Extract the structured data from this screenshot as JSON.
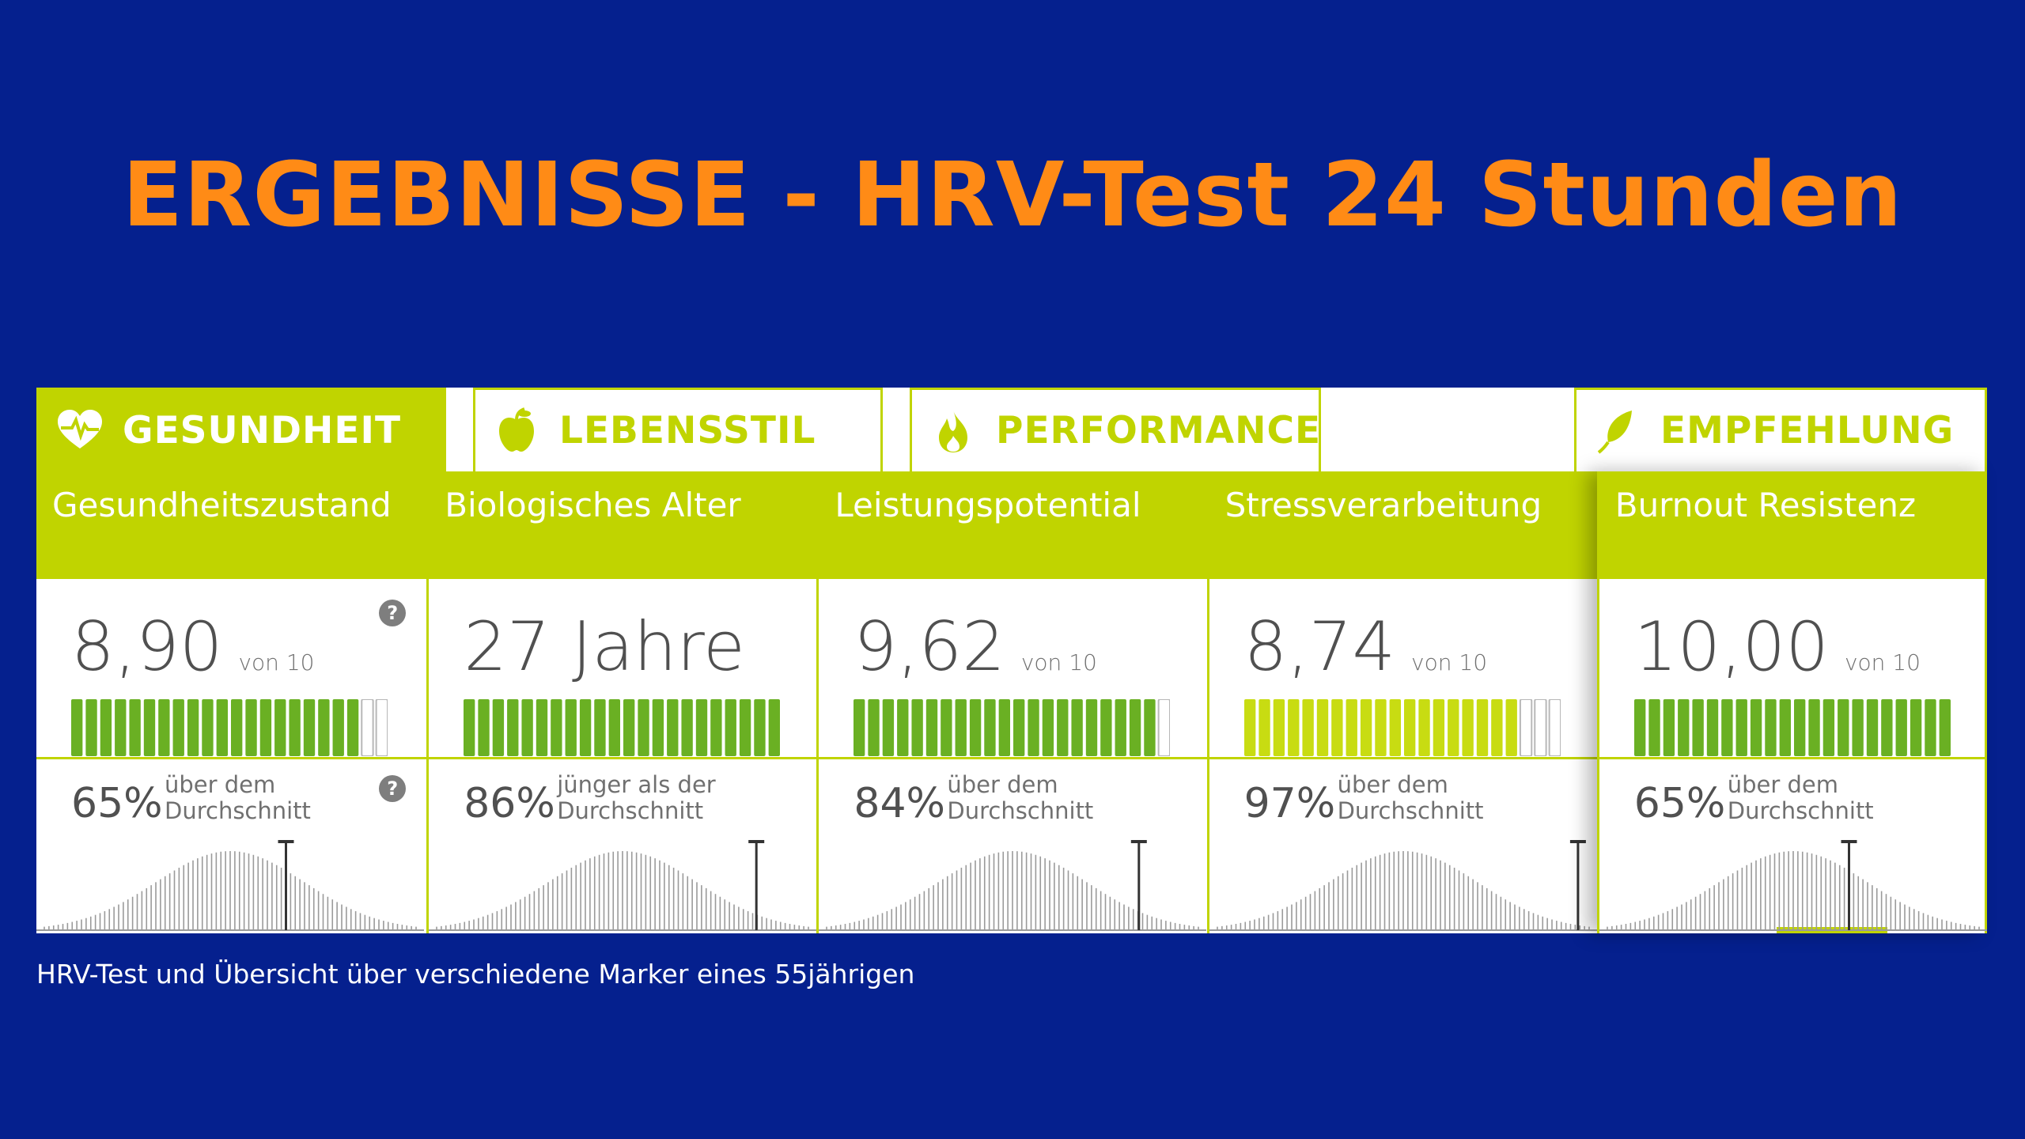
{
  "title": "ERGEBNISSE - HRV-Test 24 Stunden",
  "colors": {
    "background": "#05208e",
    "title": "#ff8b16",
    "accent": "#c0d400",
    "bar_green": "#6ab023",
    "bar_yellow": "#c8dc12"
  },
  "tabs": [
    {
      "label": "GESUNDHEIT",
      "icon": "heart-pulse-icon",
      "active": true
    },
    {
      "label": "LEBENSSTIL",
      "icon": "apple-icon",
      "active": false
    },
    {
      "label": "PERFORMANCE",
      "icon": "flame-icon",
      "active": false
    },
    {
      "label": "EMPFEHLUNG",
      "icon": "leaf-icon",
      "active": false
    }
  ],
  "metrics": [
    {
      "header": "Gesundheitszustand",
      "score": "8,90",
      "unit": "von 10",
      "filled_segments": 20,
      "total_segments": 22,
      "bar_color": "green",
      "percent": "65%",
      "compare_text": "über dem Durchschnitt",
      "help": true,
      "marker_position": 0.65
    },
    {
      "header": "Biologisches Alter",
      "score": "27 Jahre",
      "unit": "",
      "filled_segments": 22,
      "total_segments": 22,
      "bar_color": "green",
      "percent": "86%",
      "compare_text": "jünger als der Durchschnitt",
      "help": false,
      "marker_position": 0.86
    },
    {
      "header": "Leistungspotential",
      "score": "9,62",
      "unit": "von 10",
      "filled_segments": 21,
      "total_segments": 22,
      "bar_color": "green",
      "percent": "84%",
      "compare_text": "über dem Durchschnitt",
      "help": false,
      "marker_position": 0.84
    },
    {
      "header": "Stressverarbeitung",
      "score": "8,74",
      "unit": "von 10",
      "filled_segments": 19,
      "total_segments": 22,
      "bar_color": "yellow",
      "percent": "97%",
      "compare_text": "über dem Durchschnitt",
      "help": false,
      "marker_position": 0.97
    },
    {
      "header": "Burnout Resistenz",
      "score": "10,00",
      "unit": "von 10",
      "filled_segments": 22,
      "total_segments": 22,
      "bar_color": "green",
      "percent": "65%",
      "compare_text": "über dem Durchschnitt",
      "help": false,
      "marker_position": 0.65
    }
  ],
  "caption": "HRV-Test und Übersicht über verschiedene Marker eines 55jährigen"
}
